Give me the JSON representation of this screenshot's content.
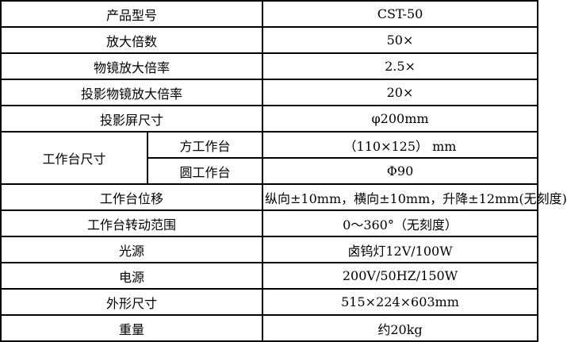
{
  "style": {
    "border_color": "#000000",
    "text_color": "#000000",
    "background_color": "#ffffff"
  },
  "table": {
    "rows": [
      {
        "label": "产品型号",
        "value": "CST-50"
      },
      {
        "label": "放大倍数",
        "value": "50×"
      },
      {
        "label": "物镜放大倍率",
        "value": "2.5×"
      },
      {
        "label": "投影物镜放大倍率",
        "value": "20×"
      },
      {
        "label": "投影屏尺寸",
        "value": "φ200mm"
      },
      {
        "group": "工作台尺寸",
        "sublabel": "方工作台",
        "value": "（110×125） mm"
      },
      {
        "sublabel": "圆工作台",
        "value": "Φ90"
      },
      {
        "label": "工作台位移",
        "value": "纵向±10mm，横向±10mm，升降±12mm(无刻度)"
      },
      {
        "label": "工作台转动范围",
        "value": "0～360°（无刻度）"
      },
      {
        "label": "光源",
        "value": "卤钨灯12V/100W"
      },
      {
        "label": "电源",
        "value": "200V/50HZ/150W"
      },
      {
        "label": "外形尺寸",
        "value": "515×224×603mm"
      },
      {
        "label": "重量",
        "value": "约20kg"
      }
    ]
  }
}
